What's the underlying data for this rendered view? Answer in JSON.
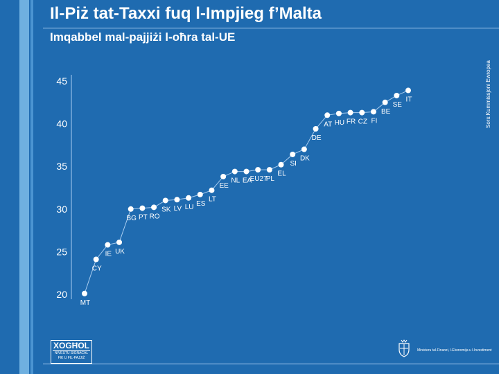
{
  "slide": {
    "title": "Il-Piż tat-Taxxi fuq l-Impjieg f’Malta",
    "subtitle": "Imqabbel mal-pajjiżi l-oħra tal-UE",
    "source": "Sors:Kummissjoni Ewropea",
    "logo": {
      "main": "XOGĦOL",
      "sub1": "NIVESTU SIGNACAL",
      "sub2": "FIK U FIL-PAJJIŻ"
    },
    "ministry": "Ministeru tal-Finanzi, l-Ekonomija u l-Investiment",
    "colors": {
      "background": "#1f6bb0",
      "series": "#ffffff",
      "text": "#ffffff"
    }
  },
  "chart_data": {
    "type": "scatter",
    "title": "",
    "xlabel": "",
    "ylabel": "",
    "ylim": [
      20,
      45
    ],
    "yticks": [
      20,
      25,
      30,
      35,
      40,
      45
    ],
    "grid": false,
    "series": [
      {
        "points": [
          {
            "label": "MT",
            "y": 20.1
          },
          {
            "label": "CY",
            "y": 24.1
          },
          {
            "label": "IE",
            "y": 25.8
          },
          {
            "label": "UK",
            "y": 26.1
          },
          {
            "label": "BG",
            "y": 30.0
          },
          {
            "label": "PT",
            "y": 30.1
          },
          {
            "label": "RO",
            "y": 30.2
          },
          {
            "label": "SK",
            "y": 31.0
          },
          {
            "label": "LV",
            "y": 31.1
          },
          {
            "label": "LU",
            "y": 31.3
          },
          {
            "label": "ES",
            "y": 31.7
          },
          {
            "label": "LT",
            "y": 32.2
          },
          {
            "label": "EE",
            "y": 33.8
          },
          {
            "label": "NL",
            "y": 34.4
          },
          {
            "label": "EA",
            "y": 34.4
          },
          {
            "label": "EU27",
            "y": 34.6
          },
          {
            "label": "PL",
            "y": 34.6
          },
          {
            "label": "EL",
            "y": 35.2
          },
          {
            "label": "SI",
            "y": 36.4
          },
          {
            "label": "DK",
            "y": 37.0
          },
          {
            "label": "DE",
            "y": 39.4
          },
          {
            "label": "AT",
            "y": 41.0
          },
          {
            "label": "HU",
            "y": 41.2
          },
          {
            "label": "FR",
            "y": 41.3
          },
          {
            "label": "CZ",
            "y": 41.3
          },
          {
            "label": "FI",
            "y": 41.4
          },
          {
            "label": "BE",
            "y": 42.5
          },
          {
            "label": "SE",
            "y": 43.3
          },
          {
            "label": "IT",
            "y": 43.9
          }
        ]
      }
    ]
  }
}
